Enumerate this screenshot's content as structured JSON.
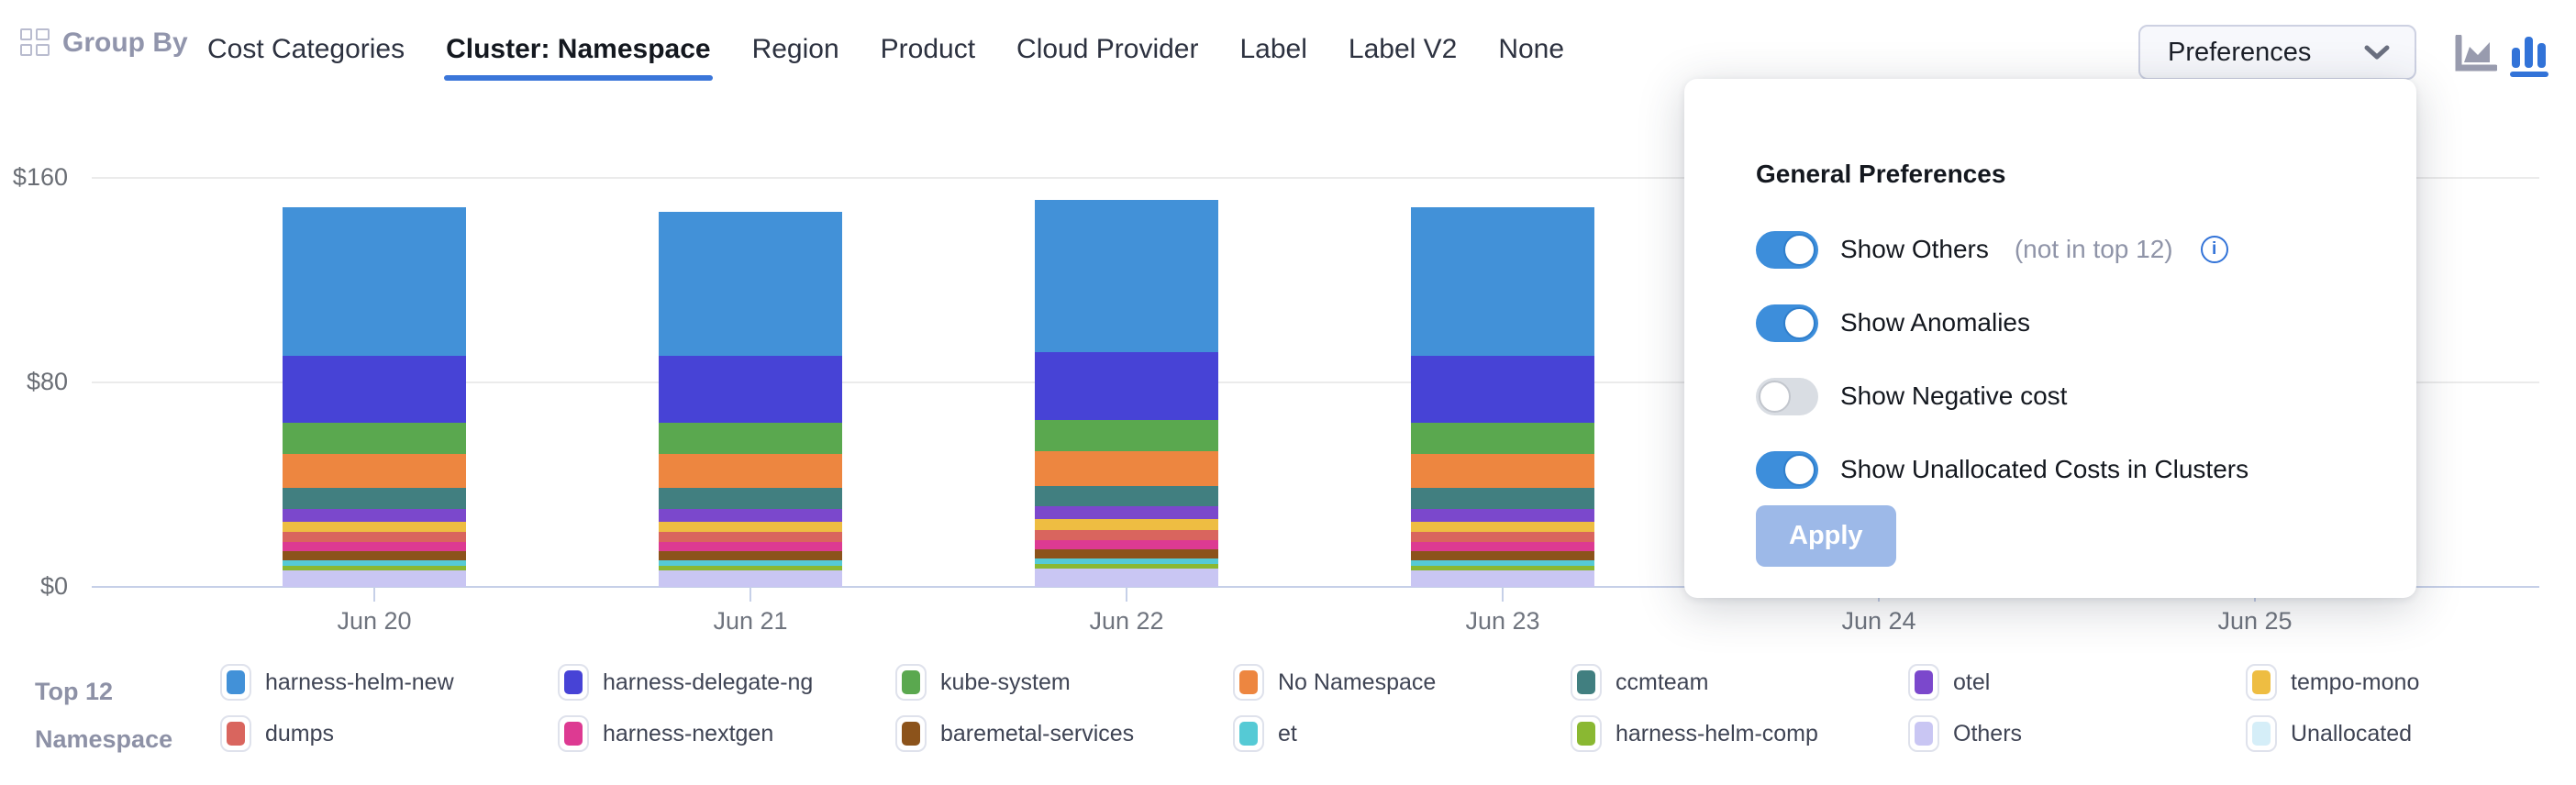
{
  "header": {
    "group_by_label": "Group By",
    "tabs": [
      {
        "label": "Cost Categories",
        "active": false
      },
      {
        "label": "Cluster: Namespace",
        "active": true
      },
      {
        "label": "Region",
        "active": false
      },
      {
        "label": "Product",
        "active": false
      },
      {
        "label": "Cloud Provider",
        "active": false
      },
      {
        "label": "Label",
        "active": false
      },
      {
        "label": "Label V2",
        "active": false
      },
      {
        "label": "None",
        "active": false
      }
    ],
    "preferences_button_label": "Preferences",
    "chart_type_icons": [
      {
        "name": "area-chart-icon",
        "active": false,
        "color": "#989bae"
      },
      {
        "name": "bar-chart-icon",
        "active": true,
        "color": "#3273d8"
      }
    ]
  },
  "preferences_popup": {
    "title": "General Preferences",
    "toggles": [
      {
        "label": "Show Others",
        "suffix": "(not in top 12)",
        "has_info_icon": true,
        "on": true
      },
      {
        "label": "Show Anomalies",
        "suffix": "",
        "has_info_icon": false,
        "on": true
      },
      {
        "label": "Show Negative cost",
        "suffix": "",
        "has_info_icon": false,
        "on": false
      },
      {
        "label": "Show Unallocated Costs in Clusters",
        "suffix": "",
        "has_info_icon": false,
        "on": true
      }
    ],
    "apply_label": "Apply",
    "apply_enabled": false
  },
  "chart_data": {
    "type": "bar",
    "stacked": true,
    "title": "",
    "xlabel": "",
    "ylabel": "",
    "ylim": [
      0,
      160
    ],
    "y_tick_labels": [
      "$160",
      "$80",
      "$0"
    ],
    "y_tick_values": [
      160,
      80,
      0
    ],
    "x_ticks": [
      "Jun 20",
      "Jun 21",
      "Jun 22",
      "Jun 23",
      "Jun 24",
      "Jun 25"
    ],
    "bars_at": [
      "Jun 20",
      "Jun 21",
      "Jun 22",
      "Jun 23"
    ],
    "grid": "horizontal",
    "legend_position": "bottom",
    "stack_order_note": "series listed top-of-stack first",
    "series": [
      {
        "name": "harness-helm-new",
        "color": "#4291d8",
        "values": [
          58.0,
          56.5,
          59.5,
          58.0
        ]
      },
      {
        "name": "harness-delegate-ng",
        "color": "#4743d6",
        "values": [
          26.0,
          26.0,
          26.5,
          26.0
        ]
      },
      {
        "name": "kube-system",
        "color": "#5aa84f",
        "values": [
          12.3,
          12.3,
          12.3,
          12.3
        ]
      },
      {
        "name": "No Namespace",
        "color": "#ed8640",
        "values": [
          13.5,
          13.5,
          13.5,
          13.5
        ]
      },
      {
        "name": "ccmteam",
        "color": "#417f80",
        "values": [
          8.0,
          8.0,
          8.0,
          8.0
        ]
      },
      {
        "name": "otel",
        "color": "#7b48cc",
        "values": [
          5.1,
          5.1,
          5.1,
          5.1
        ]
      },
      {
        "name": "tempo-mono",
        "color": "#eebd42",
        "values": [
          4.0,
          4.0,
          4.0,
          4.0
        ]
      },
      {
        "name": "dumps",
        "color": "#d9655e",
        "values": [
          4.0,
          4.0,
          4.0,
          4.0
        ]
      },
      {
        "name": "harness-nextgen",
        "color": "#dd3a92",
        "values": [
          3.6,
          3.6,
          3.6,
          3.6
        ]
      },
      {
        "name": "baremetal-services",
        "color": "#8c531b",
        "values": [
          3.6,
          3.6,
          3.6,
          3.6
        ]
      },
      {
        "name": "et",
        "color": "#55cad5",
        "values": [
          2.2,
          2.2,
          2.2,
          2.2
        ]
      },
      {
        "name": "harness-helm-comp",
        "color": "#8ab832",
        "values": [
          1.8,
          1.8,
          1.8,
          1.8
        ]
      },
      {
        "name": "Others",
        "color": "#c9c6f3",
        "values": [
          6.3,
          6.3,
          7.2,
          6.3
        ]
      },
      {
        "name": "Unallocated",
        "color": "#d5eef8",
        "values": [
          0,
          0,
          0,
          0
        ]
      }
    ]
  },
  "legend": {
    "title_line1": "Top 12",
    "title_line2": "Namespace",
    "column_major_series_indices": [
      0,
      7,
      1,
      8,
      2,
      9,
      3,
      10,
      4,
      11,
      5,
      12,
      6,
      13
    ]
  }
}
